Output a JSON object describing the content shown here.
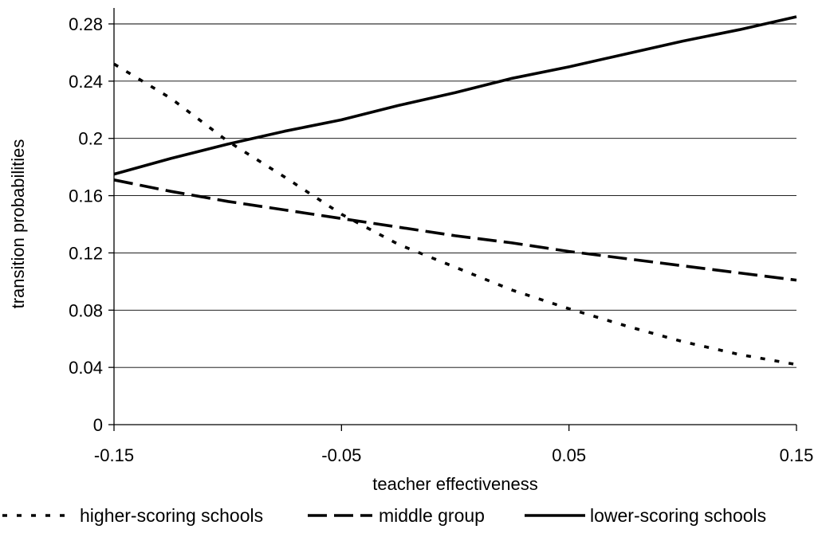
{
  "chart_data": {
    "type": "line",
    "title": "",
    "xlabel": "teacher effectiveness",
    "ylabel": "transition probabilities",
    "xlim": [
      -0.15,
      0.15
    ],
    "ylim": [
      0,
      0.28
    ],
    "x_ticks": [
      {
        "value": -0.15,
        "label": "-0.15"
      },
      {
        "value": -0.05,
        "label": "-0.05"
      },
      {
        "value": 0.05,
        "label": "0.05"
      },
      {
        "value": 0.15,
        "label": "0.15"
      }
    ],
    "y_ticks": [
      {
        "value": 0,
        "label": "0"
      },
      {
        "value": 0.04,
        "label": "0.04"
      },
      {
        "value": 0.08,
        "label": "0.08"
      },
      {
        "value": 0.12,
        "label": "0.12"
      },
      {
        "value": 0.16,
        "label": "0.16"
      },
      {
        "value": 0.2,
        "label": "0.2"
      },
      {
        "value": 0.24,
        "label": "0.24"
      },
      {
        "value": 0.28,
        "label": "0.28"
      }
    ],
    "grid": "horizontal",
    "legend_position": "bottom",
    "x": [
      -0.15,
      -0.125,
      -0.1,
      -0.075,
      -0.05,
      -0.025,
      0,
      0.025,
      0.05,
      0.075,
      0.1,
      0.125,
      0.15
    ],
    "series": [
      {
        "name": "higher-scoring schools",
        "style": "dotted",
        "color": "#000000",
        "values": [
          0.252,
          0.228,
          0.198,
          0.173,
          0.147,
          0.126,
          0.11,
          0.094,
          0.081,
          0.069,
          0.058,
          0.049,
          0.042
        ]
      },
      {
        "name": "middle group",
        "style": "dashed",
        "color": "#000000",
        "values": [
          0.171,
          0.163,
          0.156,
          0.15,
          0.144,
          0.138,
          0.132,
          0.127,
          0.121,
          0.116,
          0.111,
          0.106,
          0.101
        ]
      },
      {
        "name": "lower-scoring schools",
        "style": "solid",
        "color": "#000000",
        "values": [
          0.175,
          0.186,
          0.196,
          0.205,
          0.213,
          0.223,
          0.232,
          0.242,
          0.25,
          0.259,
          0.268,
          0.276,
          0.285
        ]
      }
    ]
  }
}
